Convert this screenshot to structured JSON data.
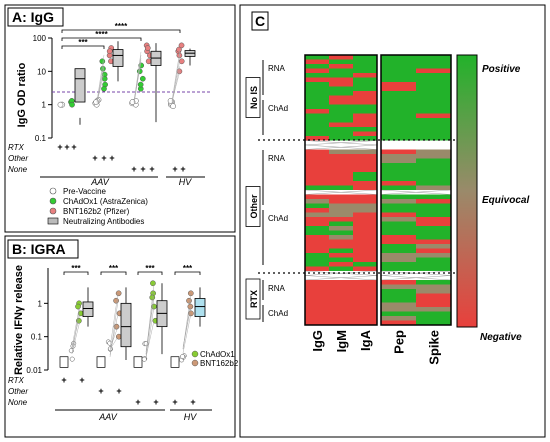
{
  "panel_a": {
    "label": "A: IgG",
    "ylabel": "IgG OD ratio",
    "y_ticks": [
      "100",
      "10",
      "1",
      "0.1"
    ],
    "threshold": 2,
    "sig": [
      "***",
      "****",
      "****"
    ],
    "rows": [
      {
        "label": "RTX",
        "marks": [
          "+",
          "+",
          "+",
          "",
          "",
          "",
          "",
          "",
          "",
          "",
          "",
          ""
        ]
      },
      {
        "label": "Other",
        "marks": [
          "",
          "",
          "",
          "+",
          "+",
          "+",
          "",
          "",
          "",
          "",
          "",
          ""
        ]
      },
      {
        "label": "None",
        "marks": [
          "",
          "",
          "",
          "",
          "",
          "",
          "+",
          "+",
          "+",
          "",
          "+",
          "+"
        ]
      }
    ],
    "group_labels": [
      "AAV",
      "HV"
    ],
    "legend": [
      {
        "label": "Pre-Vaccine",
        "color": "#ffffff"
      },
      {
        "label": "ChAdOx1 (AstraZenica)",
        "color": "#33cc33"
      },
      {
        "label": "BNT162b2 (Pfizer)",
        "color": "#e88080"
      },
      {
        "label": "Neutralizing Antibodies",
        "color": "#bbbbbb"
      }
    ]
  },
  "panel_b": {
    "label": "B: IGRA",
    "ylabel": "Relative IFNγ release",
    "y_ticks": [
      "1",
      "0.1",
      "0.01"
    ],
    "sig": [
      "***",
      "***",
      "***",
      "***"
    ],
    "rows": [
      {
        "label": "RTX",
        "marks": [
          "+",
          "+",
          "",
          "",
          "",
          "",
          "",
          ""
        ]
      },
      {
        "label": "Other",
        "marks": [
          "",
          "",
          "+",
          "+",
          "",
          "",
          "",
          ""
        ]
      },
      {
        "label": "None",
        "marks": [
          "",
          "",
          "",
          "",
          "+",
          "+",
          "+",
          "+"
        ]
      }
    ],
    "group_labels": [
      "AAV",
      "HV"
    ],
    "legend": [
      {
        "label": "ChAdOx1",
        "color": "#88cc33"
      },
      {
        "label": "BNT162b2",
        "color": "#cc9977"
      }
    ]
  },
  "panel_c": {
    "label": "C",
    "columns_left": [
      "IgG",
      "IgM",
      "IgA"
    ],
    "columns_right": [
      "Pep",
      "Spike"
    ],
    "groups": [
      {
        "label": "No IS",
        "subgroups": [
          "RNA",
          "ChAd"
        ]
      },
      {
        "label": "Other",
        "subgroups": [
          "RNA",
          "ChAd"
        ]
      },
      {
        "label": "RTX",
        "subgroups": [
          "RNA",
          "ChAd"
        ]
      }
    ],
    "scale": {
      "top": "Positive",
      "mid": "Equivocal",
      "bottom": "Negative"
    },
    "colors": {
      "positive": "#22b22a",
      "negative": "#e8403c",
      "equivocal": "#9a8a6a"
    }
  },
  "chart_data": [
    {
      "type": "box",
      "title": "A: IgG",
      "ylabel": "IgG OD ratio",
      "yscale": "log",
      "ylim": [
        0.1,
        100
      ],
      "threshold": 2,
      "series": [
        {
          "name": "Pre-Vaccine",
          "medians": [
            1.0,
            1.2,
            1.1,
            1.1
          ]
        },
        {
          "name": "ChAdOx1 (AstraZenica)",
          "medians": [
            1.0,
            5.0,
            5.0,
            20
          ]
        },
        {
          "name": "BNT162b2 (Pfizer)",
          "medians": [
            1.2,
            30,
            30,
            40
          ]
        },
        {
          "name": "Neutralizing Antibodies",
          "medians": [
            4.0,
            25,
            25,
            35
          ]
        }
      ],
      "legend_position": "bottom"
    },
    {
      "type": "box",
      "title": "B: IGRA",
      "ylabel": "Relative IFNγ release",
      "yscale": "log",
      "ylim": [
        0.01,
        10
      ],
      "series": [
        {
          "name": "ChAdOx1",
          "medians": [
            0.7,
            0.2,
            0.5,
            0.8
          ]
        },
        {
          "name": "BNT162b2",
          "medians": [
            0.6,
            0.3,
            0.4,
            0.7
          ]
        }
      ],
      "legend_position": "bottom-right"
    },
    {
      "type": "heatmap",
      "title": "C",
      "columns": [
        "IgG",
        "IgM",
        "IgA",
        "Pep",
        "Spike"
      ],
      "row_groups": [
        "No IS",
        "Other",
        "RTX"
      ],
      "scale": [
        "Positive",
        "Equivocal",
        "Negative"
      ]
    }
  ]
}
